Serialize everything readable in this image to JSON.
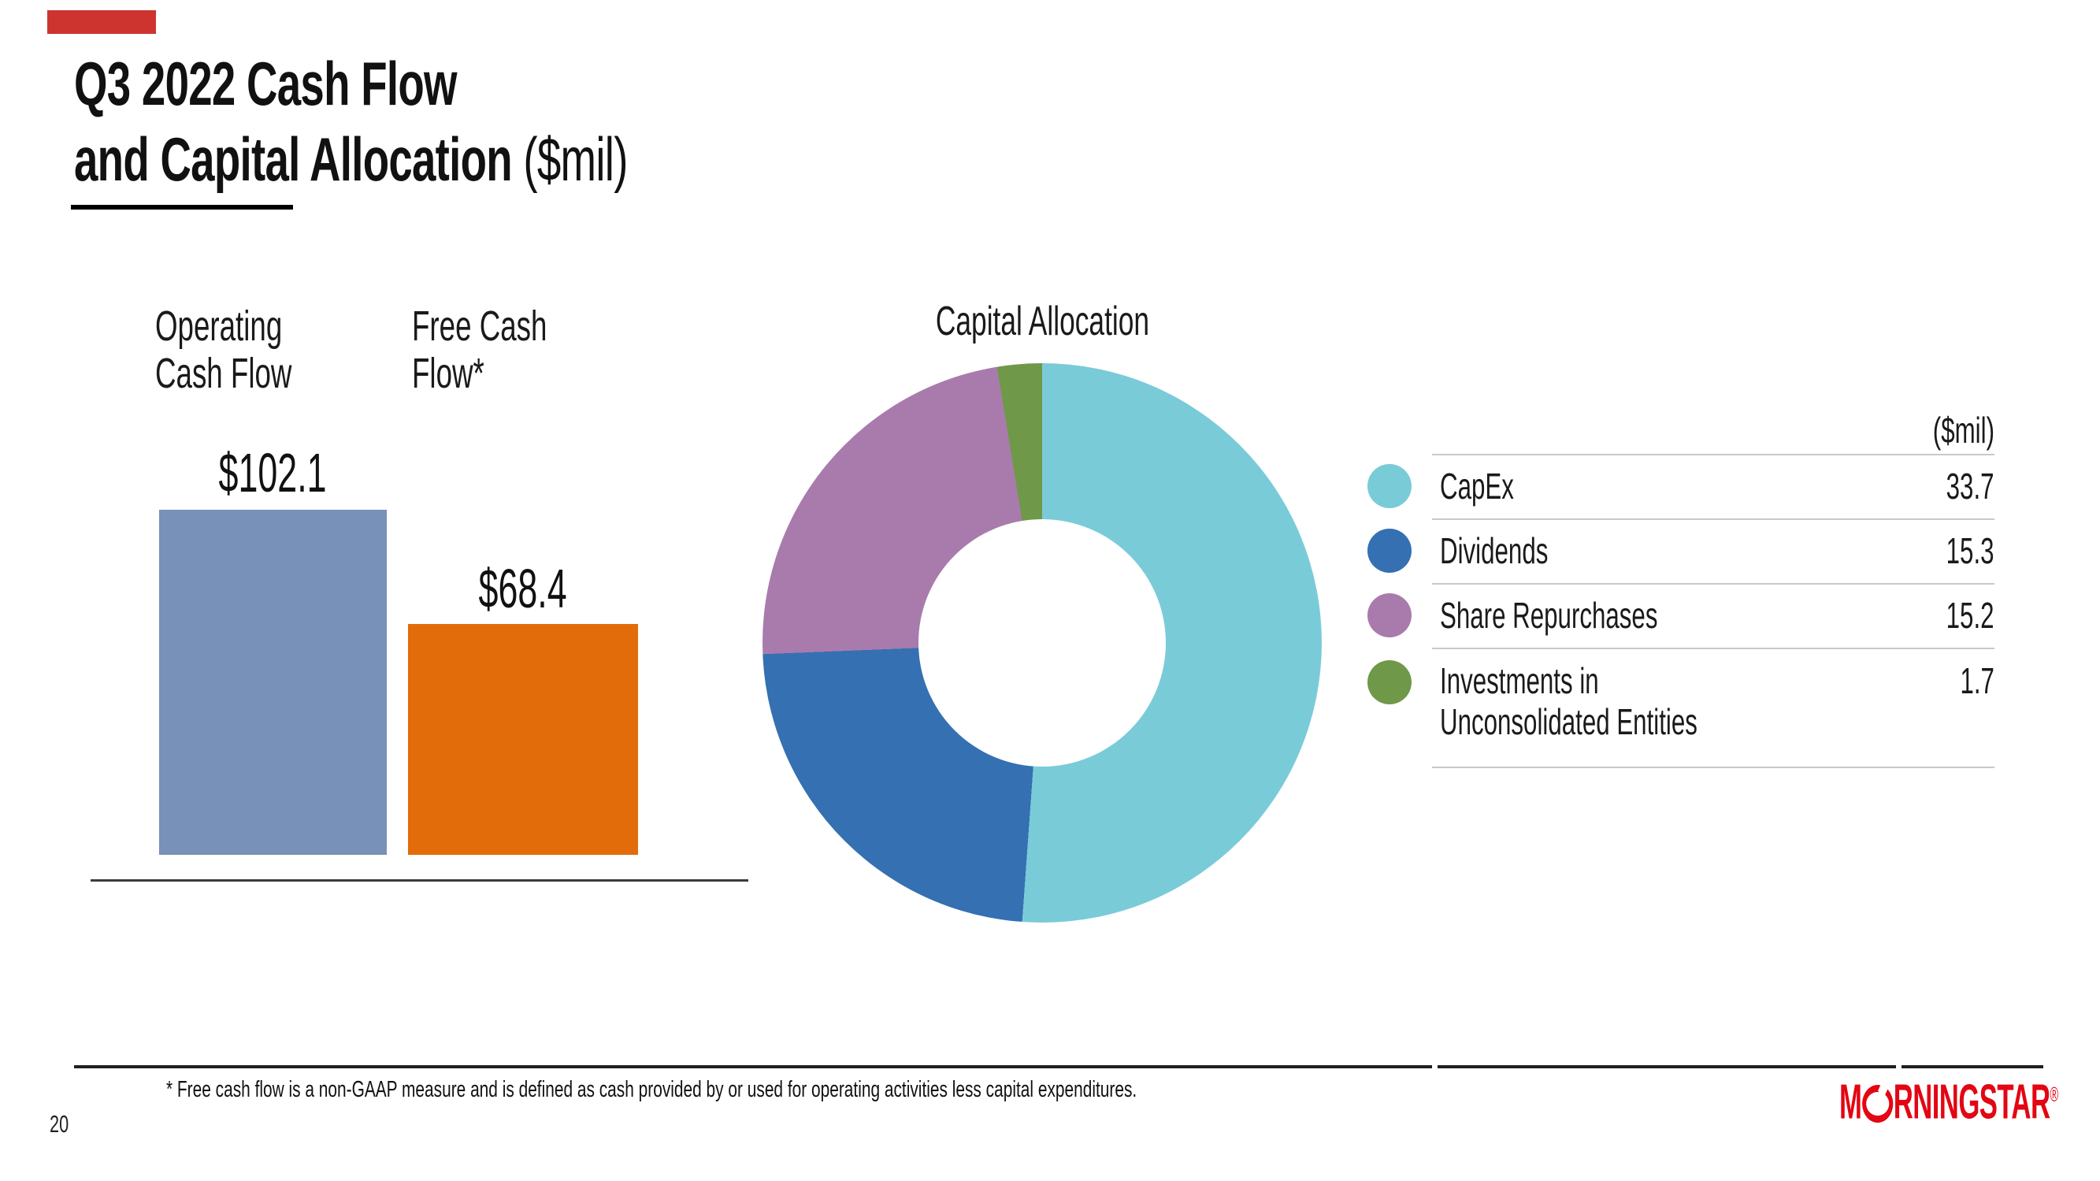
{
  "slide": {
    "title_line1": "Q3 2022 Cash Flow",
    "title_line2_bold": "and Capital Allocation",
    "title_line2_light": " ($mil)",
    "page_number": "20",
    "footnote": "* Free cash flow is a non-GAAP measure and is defined as cash provided by or used for operating activities less capital expenditures.",
    "logo": {
      "part1": "M",
      "part2": "RNINGSTAR",
      "registered": "®"
    }
  },
  "colors": {
    "accent_bar": "#cd3430",
    "logo_red": "#e30613",
    "axis_line": "#3c3c3c",
    "rule_gray": "#c9c9c9"
  },
  "chart_data": [
    {
      "type": "bar",
      "title": "",
      "categories": [
        "Operating Cash Flow",
        "Free Cash Flow*"
      ],
      "values": [
        102.1,
        68.4
      ],
      "value_labels": [
        "$102.1",
        "$68.4"
      ],
      "colors": [
        "#7791b9",
        "#e26c09"
      ],
      "unit": "$mil",
      "ylim": [
        0,
        102.1
      ],
      "grid": false
    },
    {
      "type": "pie",
      "subtype": "donut",
      "title": "Capital Allocation",
      "unit_label": "($mil)",
      "categories": [
        "CapEx",
        "Dividends",
        "Share Repurchases",
        "Investments in\nUnconsolidated Entities"
      ],
      "values": [
        33.7,
        15.3,
        15.2,
        1.7
      ],
      "colors": [
        "#7acbd8",
        "#3470b2",
        "#a97bad",
        "#6f9849"
      ],
      "start_angle_deg": 0,
      "direction": "clockwise",
      "inner_radius_ratio": 0.44,
      "legend_position": "right",
      "legend_values": [
        "33.7",
        "15.3",
        "15.2",
        "1.7"
      ]
    }
  ]
}
